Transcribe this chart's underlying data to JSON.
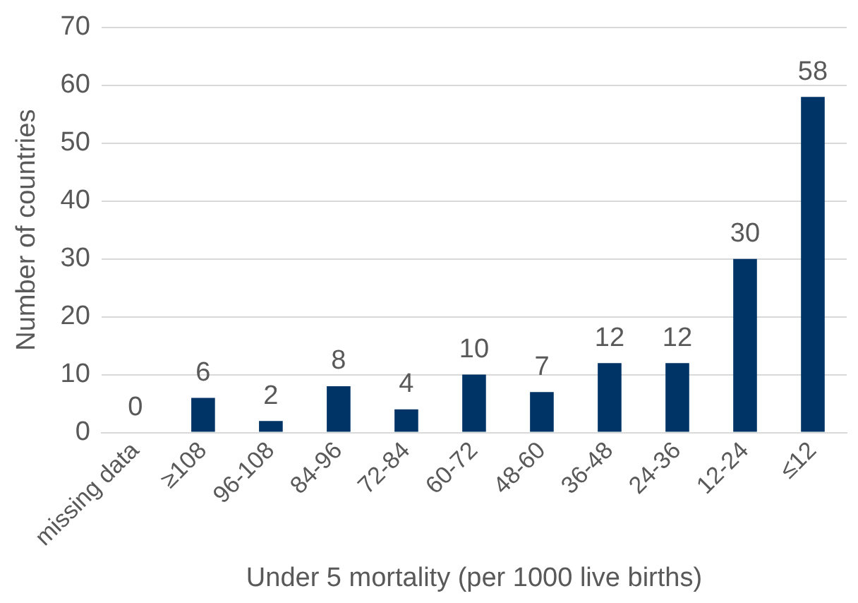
{
  "chart_data": {
    "type": "bar",
    "xlabel": "Under 5 mortality (per 1000 live births)",
    "ylabel": "Number of countries",
    "categories": [
      "missing data",
      "≥108",
      "96-108",
      "84-96",
      "72-84",
      "60-72",
      "48-60",
      "36-48",
      "24-36",
      "12-24",
      "≤12"
    ],
    "values": [
      0,
      6,
      2,
      8,
      4,
      10,
      7,
      12,
      12,
      30,
      58
    ],
    "color": "#003366",
    "ylim": [
      0,
      70
    ],
    "yticks": [
      0,
      10,
      20,
      30,
      40,
      50,
      60,
      70
    ],
    "grid": "y",
    "data_labels": true,
    "legend": false
  }
}
